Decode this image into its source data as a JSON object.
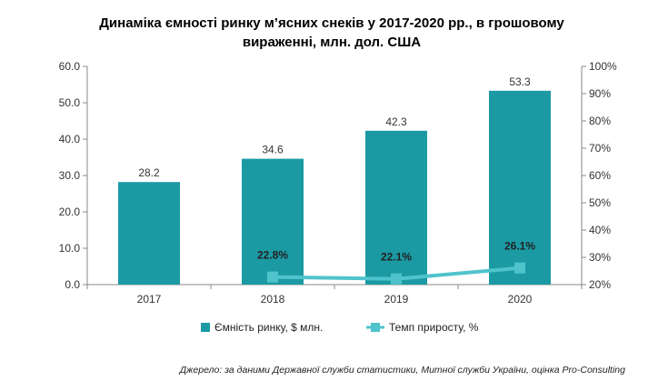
{
  "chart_data": {
    "type": "bar",
    "title_lines": [
      "Динаміка ємності ринку м’ясних снеків у 2017-2020 рр., в грошовому",
      "вираженні, млн. дол. США"
    ],
    "categories": [
      "2017",
      "2018",
      "2019",
      "2020"
    ],
    "series": [
      {
        "name": "Ємність ринку, $ млн.",
        "type": "bar",
        "axis": "left",
        "color": "#1b9aa4",
        "values": [
          28.2,
          34.6,
          42.3,
          53.3
        ],
        "labels": [
          "28.2",
          "34.6",
          "42.3",
          "53.3"
        ]
      },
      {
        "name": "Темп приросту, %",
        "type": "line",
        "axis": "right",
        "color": "#4fc3cc",
        "points": [
          {
            "category": "2018",
            "value": 22.8,
            "label": "22.8%"
          },
          {
            "category": "2019",
            "value": 22.1,
            "label": "22.1%"
          },
          {
            "category": "2020",
            "value": 26.1,
            "label": "26.1%"
          }
        ]
      }
    ],
    "y_left": {
      "min": 0,
      "max": 60,
      "ticks": [
        {
          "value": 0,
          "label": "0.0"
        },
        {
          "value": 10,
          "label": "10.0"
        },
        {
          "value": 20,
          "label": "20.0"
        },
        {
          "value": 30,
          "label": "30.0"
        },
        {
          "value": 40,
          "label": "40.0"
        },
        {
          "value": 50,
          "label": "50.0"
        },
        {
          "value": 60,
          "label": "60.0"
        }
      ]
    },
    "y_right": {
      "min": 20,
      "max": 100,
      "ticks": [
        {
          "value": 20,
          "label": "20%"
        },
        {
          "value": 30,
          "label": "30%"
        },
        {
          "value": 40,
          "label": "40%"
        },
        {
          "value": 50,
          "label": "50%"
        },
        {
          "value": 60,
          "label": "60%"
        },
        {
          "value": 70,
          "label": "70%"
        },
        {
          "value": 80,
          "label": "80%"
        },
        {
          "value": 90,
          "label": "90%"
        },
        {
          "value": 100,
          "label": "100%"
        }
      ]
    },
    "grid": false,
    "legend_position": "bottom",
    "source": "Джерело: за даними Державної служби статистики, Митної служби України, оцінка Pro-Consulting"
  }
}
